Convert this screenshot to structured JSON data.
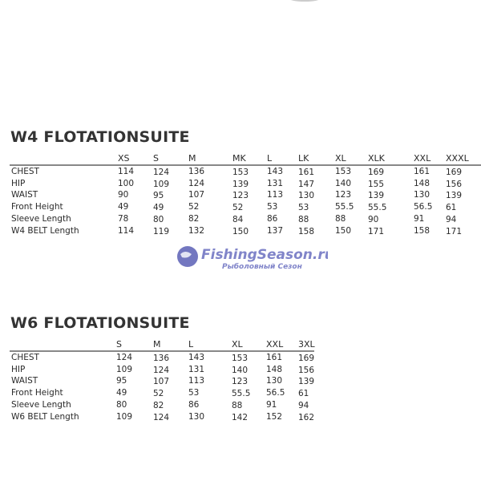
{
  "tables": [
    {
      "title": "W4 FLOTATIONSUITE",
      "sizes": [
        "XS",
        "S",
        "M",
        "MK",
        "L",
        "LK",
        "XL",
        "XLK",
        "XXL",
        "XXXL"
      ],
      "rows": [
        {
          "label": "CHEST",
          "values": [
            "114",
            "124",
            "136",
            "153",
            "143",
            "161",
            "153",
            "169",
            "161",
            "169"
          ]
        },
        {
          "label": "HIP",
          "values": [
            "100",
            "109",
            "124",
            "139",
            "131",
            "147",
            "140",
            "155",
            "148",
            "156"
          ]
        },
        {
          "label": "WAIST",
          "values": [
            "90",
            "95",
            "107",
            "123",
            "113",
            "130",
            "123",
            "139",
            "130",
            "139"
          ]
        },
        {
          "label": "Front Height",
          "values": [
            "49",
            "49",
            "52",
            "52",
            "53",
            "53",
            "55.5",
            "55.5",
            "56.5",
            "61"
          ]
        },
        {
          "label": "Sleeve Length",
          "values": [
            "78",
            "80",
            "82",
            "84",
            "86",
            "88",
            "88",
            "90",
            "91",
            "94"
          ]
        },
        {
          "label": "W4 BELT Length",
          "values": [
            "114",
            "119",
            "132",
            "150",
            "137",
            "158",
            "150",
            "171",
            "158",
            "171"
          ]
        }
      ]
    },
    {
      "title": "W6 FLOTATIONSUITE",
      "sizes": [
        "S",
        "M",
        "L",
        "XL",
        "XXL",
        "3XL"
      ],
      "rows": [
        {
          "label": "CHEST",
          "values": [
            "124",
            "136",
            "143",
            "153",
            "161",
            "169"
          ]
        },
        {
          "label": "HIP",
          "values": [
            "109",
            "124",
            "131",
            "140",
            "148",
            "156"
          ]
        },
        {
          "label": "WAIST",
          "values": [
            "95",
            "107",
            "113",
            "123",
            "130",
            "139"
          ]
        },
        {
          "label": "Front Height",
          "values": [
            "49",
            "52",
            "53",
            "55.5",
            "56.5",
            "61"
          ]
        },
        {
          "label": "Sleeve Length",
          "values": [
            "80",
            "82",
            "86",
            "88",
            "91",
            "94"
          ]
        },
        {
          "label": "W6 BELT Length",
          "values": [
            "109",
            "124",
            "130",
            "142",
            "152",
            "162"
          ]
        }
      ]
    }
  ],
  "watermark": {
    "name": "FishingSeason.ru",
    "tagline": "Рыболовный Сезон",
    "color": "#5a5fb5"
  }
}
